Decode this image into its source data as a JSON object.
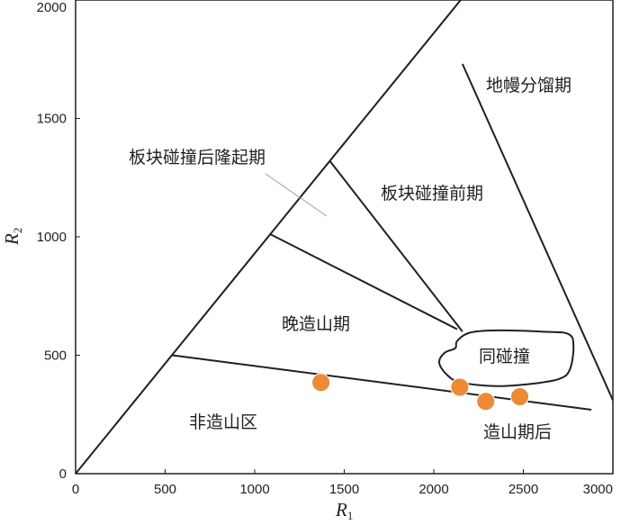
{
  "chart_data": {
    "type": "scatter",
    "title": "",
    "xlabel": "R",
    "xlabel_sub": "1",
    "ylabel": "R",
    "ylabel_sub": "2",
    "xlim": [
      0,
      3000
    ],
    "ylim": [
      0,
      2000
    ],
    "xticks": [
      "0",
      "500",
      "1000",
      "1500",
      "2000",
      "2500",
      "3000"
    ],
    "yticks": [
      "0",
      "500",
      "1000",
      "1500",
      "2000"
    ],
    "grid": false,
    "points": [
      {
        "x": 1370,
        "y": 385
      },
      {
        "x": 2145,
        "y": 365
      },
      {
        "x": 2290,
        "y": 305
      },
      {
        "x": 2480,
        "y": 325
      }
    ],
    "point_color": "#ec8a35",
    "region_labels": [
      {
        "id": "post-collision-uplift",
        "text": "板块碰撞后隆起期"
      },
      {
        "id": "pre-collision",
        "text": "板块碰撞前期"
      },
      {
        "id": "mantle-fractionation",
        "text": "地幔分馏期"
      },
      {
        "id": "late-orogenic",
        "text": "晚造山期"
      },
      {
        "id": "syn-collision",
        "text": "同碰撞"
      },
      {
        "id": "non-orogenic",
        "text": "非造山区"
      },
      {
        "id": "post-orogenic",
        "text": "造山期后"
      }
    ],
    "boundaries": [
      {
        "id": "left-diagonal",
        "x": [
          0,
          2150
        ],
        "y": [
          0,
          2000
        ]
      },
      {
        "id": "post-orogenic-line",
        "x": [
          540,
          2880
        ],
        "y": [
          500,
          270
        ]
      },
      {
        "id": "late-orogenic-line",
        "x": [
          1090,
          2130
        ],
        "y": [
          1010,
          610
        ]
      },
      {
        "id": "pre-collision-line",
        "x": [
          1420,
          2160
        ],
        "y": [
          1320,
          600
        ]
      },
      {
        "id": "mantle-line",
        "x": [
          2160,
          3000
        ],
        "y": [
          1730,
          310
        ]
      }
    ],
    "syn_collision_outline": [
      [
        2120,
        530
      ],
      [
        2130,
        560
      ],
      [
        2200,
        595
      ],
      [
        2350,
        605
      ],
      [
        2600,
        600
      ],
      [
        2750,
        590
      ],
      [
        2780,
        540
      ],
      [
        2760,
        440
      ],
      [
        2700,
        400
      ],
      [
        2550,
        380
      ],
      [
        2350,
        370
      ],
      [
        2150,
        385
      ],
      [
        2070,
        420
      ],
      [
        2030,
        470
      ],
      [
        2060,
        510
      ]
    ]
  }
}
